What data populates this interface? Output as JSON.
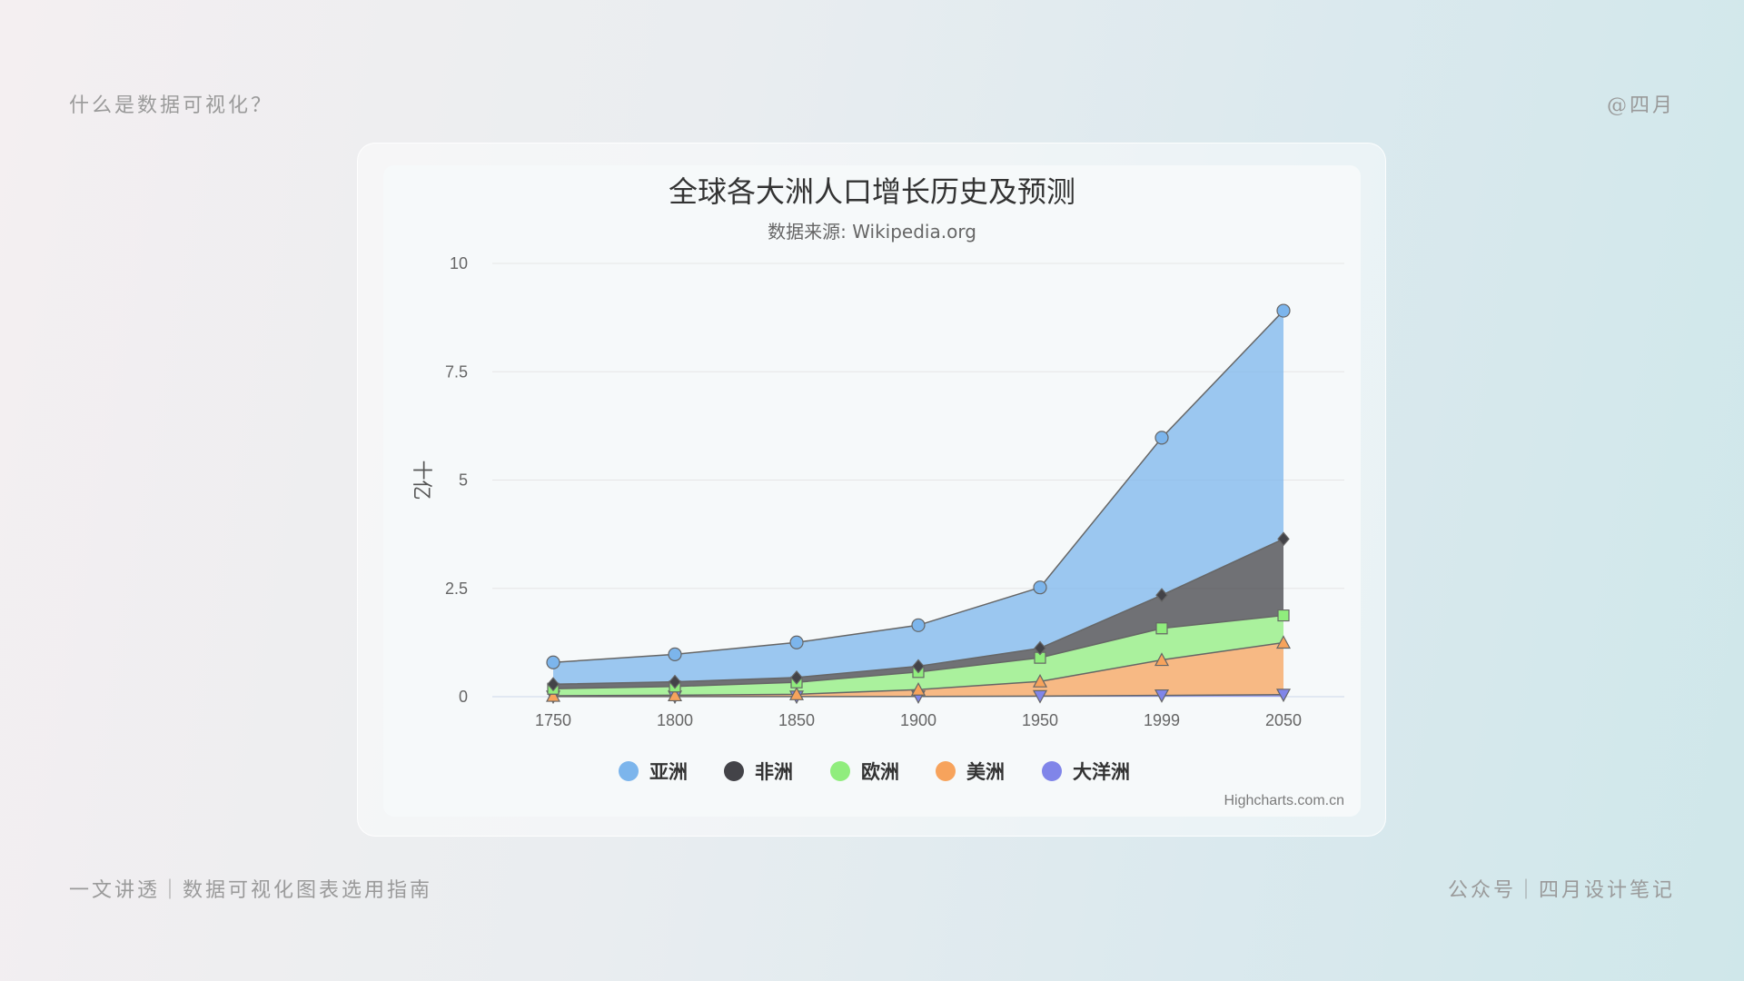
{
  "page": {
    "top_left": "什么是数据可视化？",
    "top_right": "@四月",
    "bottom_left": "一文讲透｜数据可视化图表选用指南",
    "bottom_right": "公众号｜四月设计笔记"
  },
  "chart_data": {
    "type": "area",
    "stacked": true,
    "title": "全球各大洲人口增长历史及预测",
    "subtitle": "数据来源: Wikipedia.org",
    "xlabel": "",
    "ylabel": "十亿",
    "categories": [
      "1750",
      "1800",
      "1850",
      "1900",
      "1950",
      "1999",
      "2050"
    ],
    "ylim": [
      0,
      10
    ],
    "yticks": [
      "0",
      "2.5",
      "5",
      "7.5",
      "10"
    ],
    "grid": true,
    "legend_position": "bottom-center",
    "credit": "Highcharts.com.cn",
    "series": [
      {
        "name": "亚洲",
        "color": "#7cb5ec",
        "marker": "circle",
        "values": [
          0.502,
          0.635,
          0.809,
          0.947,
          1.402,
          3.634,
          5.268
        ]
      },
      {
        "name": "非洲",
        "color": "#434348",
        "marker": "diamond",
        "values": [
          0.106,
          0.107,
          0.111,
          0.133,
          0.221,
          0.767,
          1.766
        ]
      },
      {
        "name": "欧洲",
        "color": "#90ed7d",
        "marker": "square",
        "values": [
          0.163,
          0.203,
          0.276,
          0.408,
          0.547,
          0.729,
          0.628
        ]
      },
      {
        "name": "美洲",
        "color": "#f7a35c",
        "marker": "triangle",
        "values": [
          0.018,
          0.031,
          0.054,
          0.156,
          0.339,
          0.818,
          1.201
        ]
      },
      {
        "name": "大洋洲",
        "color": "#8085e9",
        "marker": "triangle-down",
        "values": [
          0.002,
          0.002,
          0.002,
          0.006,
          0.013,
          0.03,
          0.046
        ]
      }
    ]
  }
}
